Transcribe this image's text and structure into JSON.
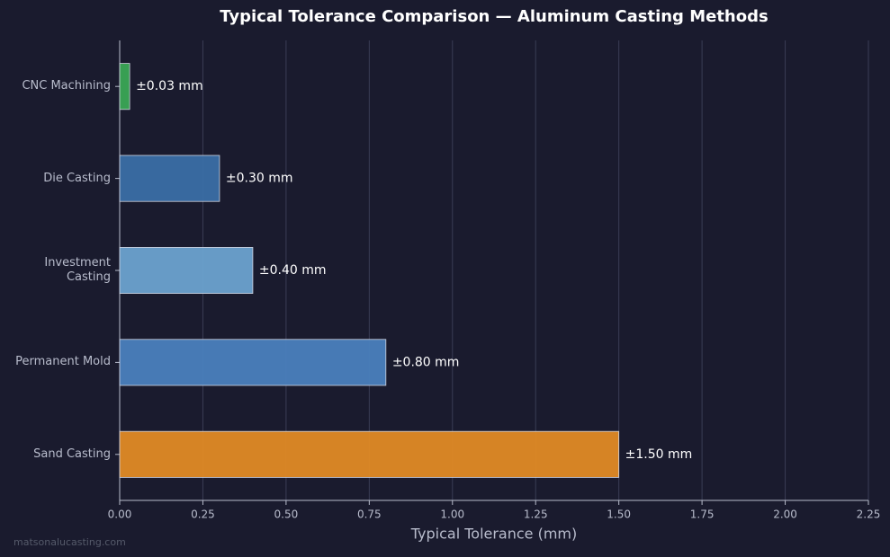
{
  "chart_data": {
    "type": "hbar",
    "title": "Typical Tolerance Comparison — Aluminum Casting Methods",
    "xlabel": "Typical Tolerance (mm)",
    "categories": [
      "CNC Machining",
      "Die Casting",
      "Investment\nCasting",
      "Permanent Mold",
      "Sand Casting"
    ],
    "values": [
      0.03,
      0.3,
      0.4,
      0.8,
      1.5
    ],
    "value_labels": [
      "±0.03 mm",
      "±0.30 mm",
      "±0.40 mm",
      "±0.80 mm",
      "±1.50 mm"
    ],
    "colors": [
      "#3aa655",
      "#3a6ea5",
      "#6ba2cf",
      "#4a80bd",
      "#e08a25"
    ],
    "xlim": [
      0,
      2.25
    ],
    "xticks": [
      {
        "value": 0,
        "label": "0.00"
      },
      0.25,
      {
        "value": 0.5,
        "label": "0.50"
      },
      0.75,
      {
        "value": 1,
        "label": "1.00"
      },
      1.25,
      {
        "value": 1.5,
        "label": "1.50"
      },
      1.75,
      {
        "value": 2,
        "label": "2.00"
      },
      2.25
    ],
    "grid": true,
    "watermark": "matsonalucasting.com"
  }
}
